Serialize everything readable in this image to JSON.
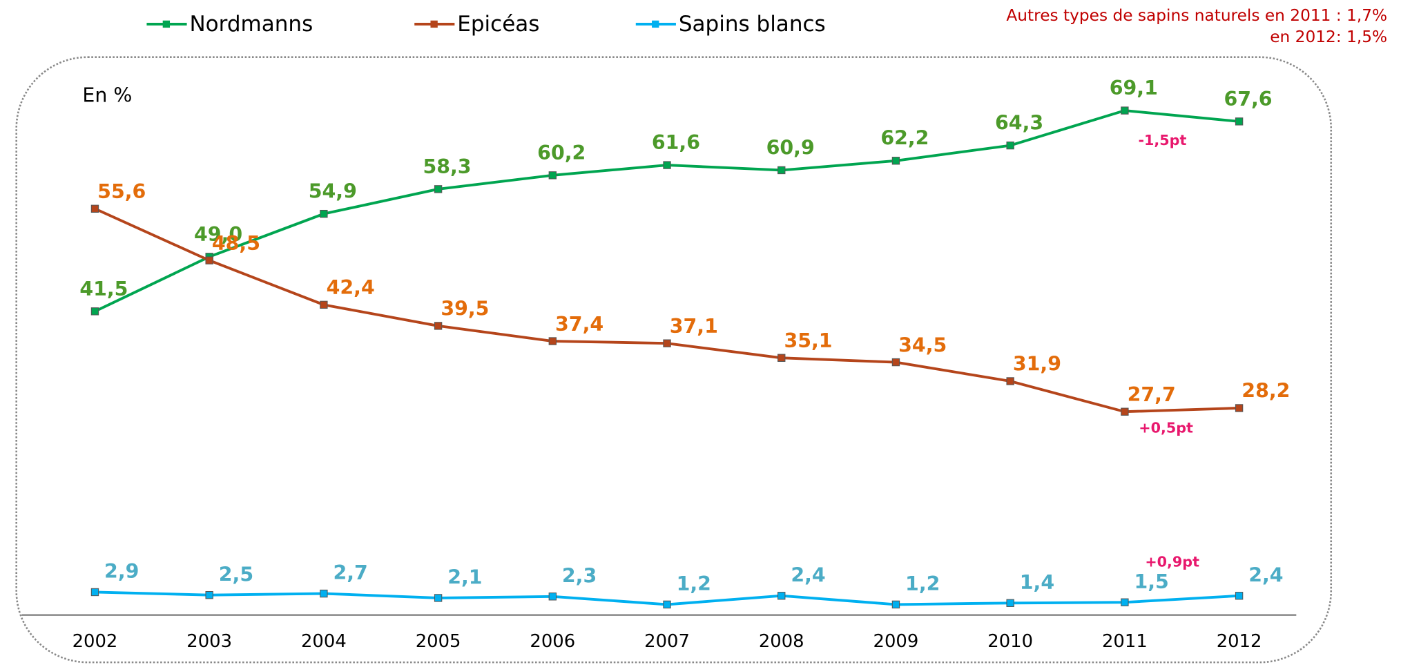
{
  "chart_data": {
    "type": "line",
    "unit_note": "En %",
    "note": [
      "Autres types de sapins naturels en 2011 : 1,7%",
      "en 2012: 1,5%"
    ],
    "annotations": [
      "-1,5pt",
      "+0,5pt",
      "+0,9pt"
    ],
    "categories": [
      "2002",
      "2003",
      "2004",
      "2005",
      "2006",
      "2007",
      "2008",
      "2009",
      "2010",
      "2011",
      "2012"
    ],
    "ylim": [
      0,
      70
    ],
    "series": [
      {
        "name": "Nordmanns",
        "color": "#00a550",
        "label_color": "#4c9a2a",
        "values": [
          41.5,
          49.0,
          54.9,
          58.3,
          60.2,
          61.6,
          60.9,
          62.2,
          64.3,
          69.1,
          67.6
        ],
        "value_labels": [
          "41,5",
          "49,0",
          "54,9",
          "58,3",
          "60,2",
          "61,6",
          "60,9",
          "62,2",
          "64,3",
          "69,1",
          "67,6"
        ]
      },
      {
        "name": "Epicéas",
        "color": "#b5451b",
        "label_color": "#e36c0a",
        "values": [
          55.6,
          48.5,
          42.4,
          39.5,
          37.4,
          37.1,
          35.1,
          34.5,
          31.9,
          27.7,
          28.2
        ],
        "value_labels": [
          "55,6",
          "48,5",
          "42,4",
          "39,5",
          "37,4",
          "37,1",
          "35,1",
          "34,5",
          "31,9",
          "27,7",
          "28,2"
        ]
      },
      {
        "name": "Sapins blancs",
        "color": "#00b0f0",
        "label_color": "#4bacc6",
        "values": [
          2.9,
          2.5,
          2.7,
          2.1,
          2.3,
          1.2,
          2.4,
          1.2,
          1.4,
          1.5,
          2.4
        ],
        "value_labels": [
          "2,9",
          "2,5",
          "2,7",
          "2,1",
          "2,3",
          "1,2",
          "2,4",
          "1,2",
          "1,4",
          "1,5",
          "2,4"
        ]
      }
    ]
  }
}
